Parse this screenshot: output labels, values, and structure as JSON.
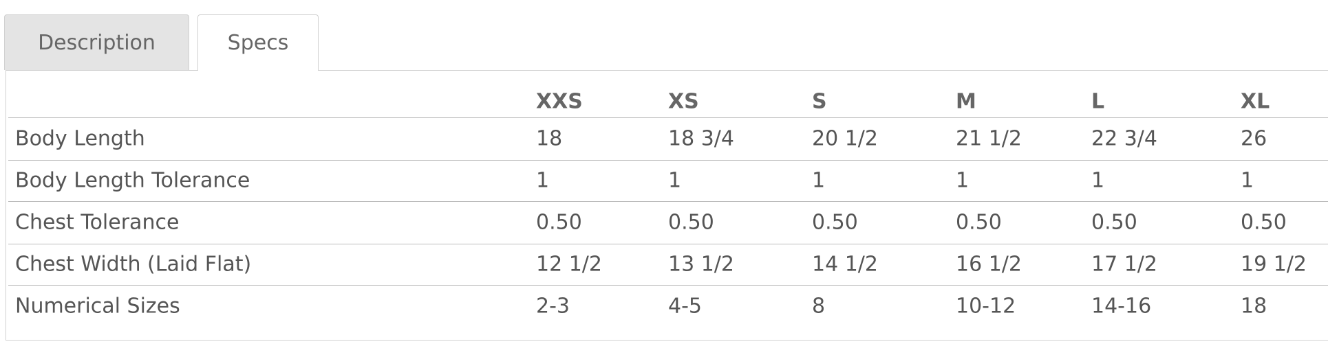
{
  "tabs": [
    "Description",
    "Specs"
  ],
  "active_tab": 1,
  "table": {
    "columns": [
      "XXS",
      "XS",
      "S",
      "M",
      "L",
      "XL"
    ],
    "rows": [
      {
        "label": "Body Length",
        "values": [
          "18",
          "18 3/4",
          "20 1/2",
          "21 1/2",
          "22 3/4",
          "26"
        ]
      },
      {
        "label": "Body Length Tolerance",
        "values": [
          "1",
          "1",
          "1",
          "1",
          "1",
          "1"
        ]
      },
      {
        "label": "Chest Tolerance",
        "values": [
          "0.50",
          "0.50",
          "0.50",
          "0.50",
          "0.50",
          "0.50"
        ]
      },
      {
        "label": "Chest Width (Laid Flat)",
        "values": [
          "12 1/2",
          "13 1/2",
          "14 1/2",
          "16 1/2",
          "17 1/2",
          "19 1/2"
        ]
      },
      {
        "label": "Numerical Sizes",
        "values": [
          "2-3",
          "4-5",
          "8",
          "10-12",
          "14-16",
          "18"
        ]
      }
    ]
  }
}
